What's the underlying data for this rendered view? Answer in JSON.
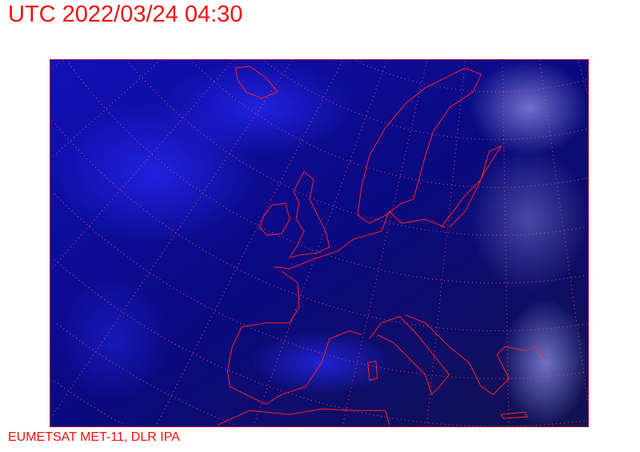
{
  "header": {
    "title": "UTC 2022/03/24 04:30"
  },
  "footer": {
    "credit": "EUMETSAT MET-11, DLR IPA"
  },
  "map": {
    "type": "satellite-image",
    "region": "Europe",
    "colors": {
      "background": "#0a0a8a",
      "clouds": "#7a7ae0",
      "coastlines": "#ff2020",
      "graticule": "#ff4060"
    }
  }
}
